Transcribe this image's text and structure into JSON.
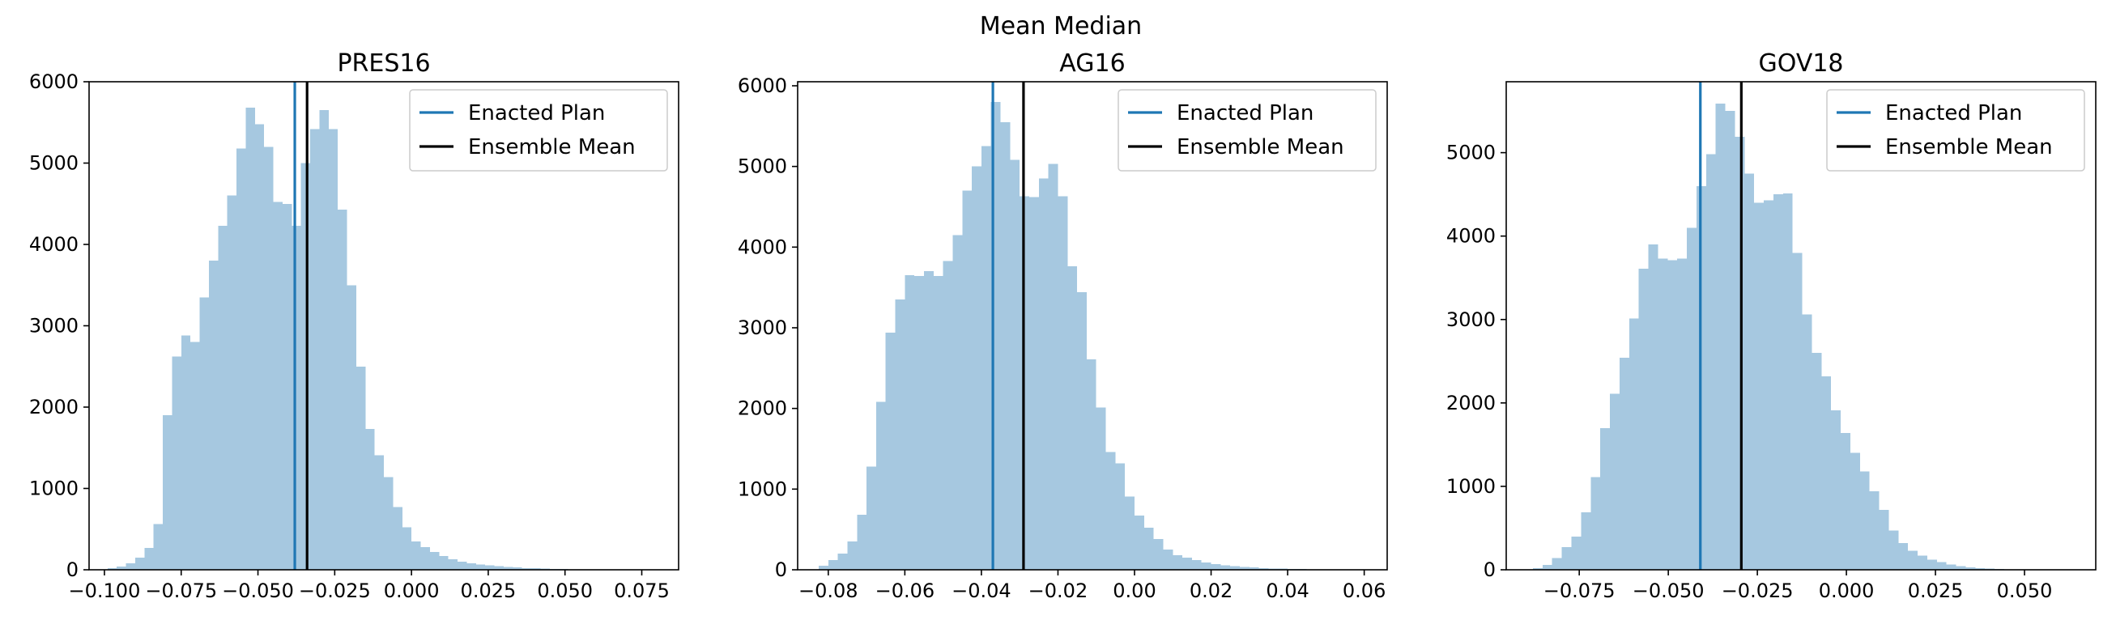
{
  "figure": {
    "suptitle": "Mean Median"
  },
  "chart_data": [
    {
      "type": "bar",
      "title": "PRES16",
      "xlabel": "",
      "ylabel": "",
      "xlim": [
        -0.105,
        0.087
      ],
      "ylim": [
        0,
        6000
      ],
      "xticks": [
        -0.1,
        -0.075,
        -0.05,
        -0.025,
        0.0,
        0.025,
        0.05,
        0.075
      ],
      "xtick_labels": [
        "−0.100",
        "−0.075",
        "−0.050",
        "−0.025",
        "0.000",
        "0.025",
        "0.050",
        "0.075"
      ],
      "yticks": [
        0,
        1000,
        2000,
        3000,
        4000,
        5000,
        6000
      ],
      "ytick_labels": [
        "0",
        "1000",
        "2000",
        "3000",
        "4000",
        "5000",
        "6000"
      ],
      "bin_edges": [
        -0.099,
        -0.096,
        -0.093,
        -0.09,
        -0.087,
        -0.084,
        -0.081,
        -0.078,
        -0.075,
        -0.072,
        -0.069,
        -0.066,
        -0.063,
        -0.06,
        -0.057,
        -0.054,
        -0.051,
        -0.048,
        -0.045,
        -0.042,
        -0.039,
        -0.036,
        -0.033,
        -0.03,
        -0.027,
        -0.024,
        -0.021,
        -0.018,
        -0.015,
        -0.012,
        -0.009,
        -0.006,
        -0.003,
        0.0,
        0.003,
        0.006,
        0.009,
        0.012,
        0.015,
        0.018,
        0.021,
        0.024,
        0.027,
        0.03,
        0.033,
        0.036,
        0.039,
        0.042,
        0.045,
        0.048,
        0.051,
        0.054,
        0.057,
        0.06,
        0.063,
        0.066,
        0.069,
        0.072
      ],
      "values": [
        20,
        40,
        80,
        150,
        270,
        560,
        1900,
        2620,
        2880,
        2800,
        3350,
        3800,
        4230,
        4600,
        5180,
        5680,
        5480,
        5200,
        4520,
        4500,
        4230,
        5000,
        5420,
        5650,
        5420,
        4430,
        3500,
        2500,
        1730,
        1410,
        1140,
        770,
        520,
        350,
        280,
        220,
        170,
        130,
        100,
        80,
        65,
        55,
        45,
        35,
        28,
        22,
        18,
        14,
        10,
        8,
        6,
        5,
        4,
        3,
        2,
        1,
        1
      ],
      "color": "#a6c8e0",
      "vlines": [
        {
          "name": "Enacted Plan",
          "x": -0.038,
          "color": "#1f77b4"
        },
        {
          "name": "Ensemble Mean",
          "x": -0.034,
          "color": "#000000"
        }
      ],
      "legend": {
        "placement": "top-right",
        "entries": [
          "Enacted Plan",
          "Ensemble Mean"
        ]
      },
      "grid": false
    },
    {
      "type": "bar",
      "title": "AG16",
      "xlabel": "",
      "ylabel": "",
      "xlim": [
        -0.088,
        0.066
      ],
      "ylim": [
        0,
        6050
      ],
      "xticks": [
        -0.08,
        -0.06,
        -0.04,
        -0.02,
        0.0,
        0.02,
        0.04,
        0.06
      ],
      "xtick_labels": [
        "−0.08",
        "−0.06",
        "−0.04",
        "−0.02",
        "0.00",
        "0.02",
        "0.04",
        "0.06"
      ],
      "yticks": [
        0,
        1000,
        2000,
        3000,
        4000,
        5000,
        6000
      ],
      "ytick_labels": [
        "0",
        "1000",
        "2000",
        "3000",
        "4000",
        "5000",
        "6000"
      ],
      "bin_edges": [
        -0.0825,
        -0.08,
        -0.0775,
        -0.075,
        -0.0725,
        -0.07,
        -0.0675,
        -0.065,
        -0.0625,
        -0.06,
        -0.0575,
        -0.055,
        -0.0525,
        -0.05,
        -0.0475,
        -0.045,
        -0.0425,
        -0.04,
        -0.0375,
        -0.035,
        -0.0325,
        -0.03,
        -0.0275,
        -0.025,
        -0.0225,
        -0.02,
        -0.0175,
        -0.015,
        -0.0125,
        -0.01,
        -0.0075,
        -0.005,
        -0.0025,
        0.0,
        0.0025,
        0.005,
        0.0075,
        0.01,
        0.0125,
        0.015,
        0.0175,
        0.02,
        0.0225,
        0.025,
        0.0275,
        0.03,
        0.0325,
        0.035,
        0.0375,
        0.04,
        0.0425,
        0.045,
        0.0475,
        0.05,
        0.0525,
        0.055,
        0.0575,
        0.06
      ],
      "values": [
        50,
        120,
        200,
        350,
        680,
        1280,
        2080,
        2940,
        3350,
        3650,
        3640,
        3700,
        3640,
        3830,
        4150,
        4700,
        5000,
        5250,
        5800,
        5550,
        5080,
        4630,
        4620,
        4850,
        5030,
        4630,
        3760,
        3440,
        2610,
        2010,
        1460,
        1320,
        910,
        670,
        520,
        380,
        250,
        180,
        150,
        120,
        90,
        70,
        55,
        45,
        35,
        28,
        22,
        17,
        13,
        10,
        8,
        6,
        5,
        4,
        3,
        2,
        1
      ],
      "color": "#a6c8e0",
      "vlines": [
        {
          "name": "Enacted Plan",
          "x": -0.037,
          "color": "#1f77b4"
        },
        {
          "name": "Ensemble Mean",
          "x": -0.029,
          "color": "#000000"
        }
      ],
      "legend": {
        "placement": "top-right",
        "entries": [
          "Enacted Plan",
          "Ensemble Mean"
        ]
      },
      "grid": false
    },
    {
      "type": "bar",
      "title": "GOV18",
      "xlabel": "",
      "ylabel": "",
      "xlim": [
        -0.0955,
        0.07
      ],
      "ylim": [
        0,
        5850
      ],
      "xticks": [
        -0.075,
        -0.05,
        -0.025,
        0.0,
        0.025,
        0.05
      ],
      "xtick_labels": [
        "−0.075",
        "−0.050",
        "−0.025",
        "0.000",
        "0.025",
        "0.050"
      ],
      "yticks": [
        0,
        1000,
        2000,
        3000,
        4000,
        5000
      ],
      "ytick_labels": [
        "0",
        "1000",
        "2000",
        "3000",
        "4000",
        "5000"
      ],
      "bin_edges": [
        -0.088,
        -0.0853,
        -0.0826,
        -0.0799,
        -0.0772,
        -0.0745,
        -0.0718,
        -0.0691,
        -0.0664,
        -0.0637,
        -0.061,
        -0.0583,
        -0.0556,
        -0.0529,
        -0.0502,
        -0.0475,
        -0.0448,
        -0.0421,
        -0.0394,
        -0.0367,
        -0.034,
        -0.0313,
        -0.0286,
        -0.0259,
        -0.0232,
        -0.0205,
        -0.0178,
        -0.0151,
        -0.0124,
        -0.0097,
        -0.007,
        -0.0043,
        -0.0016,
        0.0011,
        0.0038,
        0.0065,
        0.0092,
        0.0119,
        0.0146,
        0.0173,
        0.02,
        0.0227,
        0.0254,
        0.0281,
        0.0308,
        0.0335,
        0.0362,
        0.0389,
        0.0416,
        0.0443,
        0.047,
        0.0497,
        0.0524,
        0.0551,
        0.0578
      ],
      "values": [
        20,
        60,
        140,
        270,
        400,
        690,
        1110,
        1700,
        2110,
        2540,
        3010,
        3610,
        3900,
        3730,
        3710,
        3730,
        4100,
        4600,
        4980,
        5590,
        5500,
        5190,
        4750,
        4400,
        4430,
        4500,
        4510,
        3800,
        3060,
        2600,
        2320,
        1910,
        1640,
        1400,
        1180,
        940,
        720,
        470,
        320,
        230,
        170,
        120,
        90,
        65,
        45,
        30,
        20,
        13,
        8,
        5,
        3,
        2,
        1,
        1
      ],
      "color": "#a6c8e0",
      "vlines": [
        {
          "name": "Enacted Plan",
          "x": -0.041,
          "color": "#1f77b4"
        },
        {
          "name": "Ensemble Mean",
          "x": -0.0295,
          "color": "#000000"
        }
      ],
      "legend": {
        "placement": "top-right",
        "entries": [
          "Enacted Plan",
          "Ensemble Mean"
        ]
      },
      "grid": false
    }
  ]
}
